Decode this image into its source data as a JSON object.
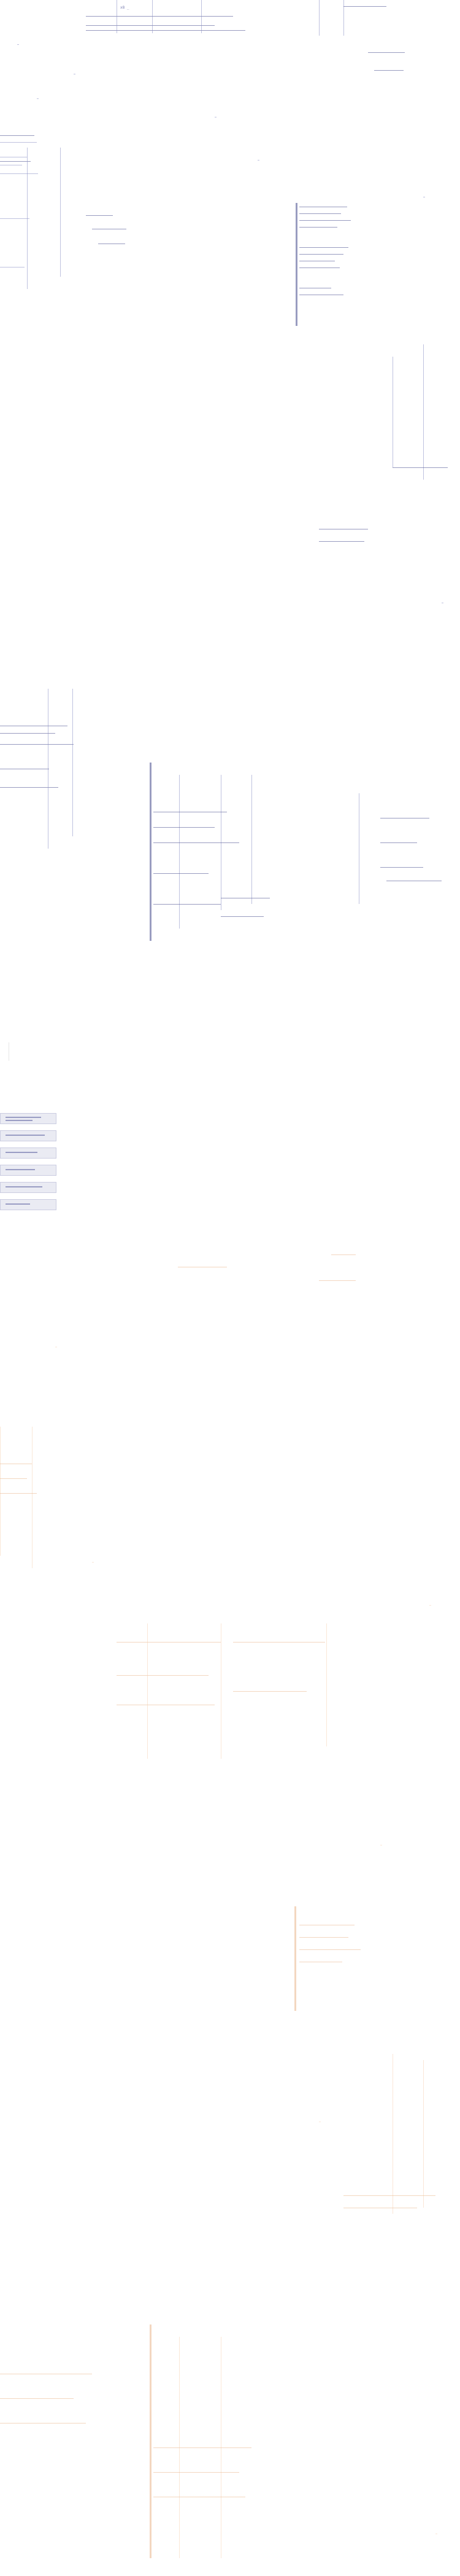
{
  "palette": {
    "blue": "#8a8fc4",
    "blue_dark": "#5b5f9a",
    "orange": "#f4c9a6",
    "orange_dark": "#e9b68c",
    "gray": "#b8b8b8"
  },
  "blue_top_labels": {
    "l1": "x8 _",
    "l2": "",
    "l3": "",
    "l4": ""
  }
}
